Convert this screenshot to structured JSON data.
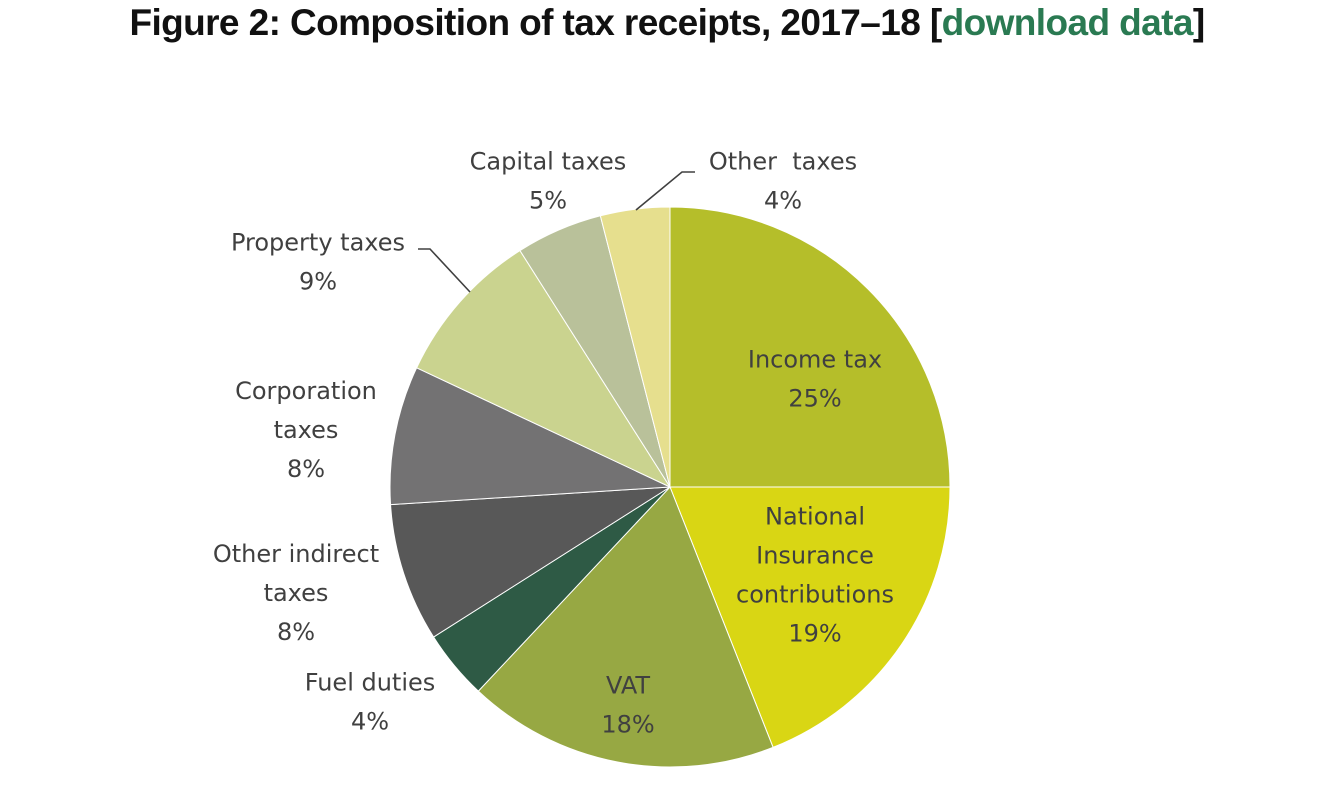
{
  "figure": {
    "title_prefix": "Figure 2: Composition of tax receipts, 2017–18 [",
    "link_text": "download data",
    "title_suffix": "]",
    "link_color": "#2a7a52"
  },
  "chart_data": {
    "type": "pie",
    "title": "Figure 2: Composition of tax receipts, 2017–18",
    "start": "12 o'clock",
    "direction": "clockwise",
    "slices": [
      {
        "label": "Income tax",
        "label_lines": [
          "Income tax"
        ],
        "value": 25,
        "value_text": "25%",
        "color": "#b5be2a"
      },
      {
        "label": "National Insurance contributions",
        "label_lines": [
          "National",
          "Insurance",
          "contributions"
        ],
        "value": 19,
        "value_text": "19%",
        "color": "#d9d614"
      },
      {
        "label": "VAT",
        "label_lines": [
          "VAT"
        ],
        "value": 18,
        "value_text": "18%",
        "color": "#97a843"
      },
      {
        "label": "Fuel duties",
        "label_lines": [
          "Fuel duties"
        ],
        "value": 4,
        "value_text": "4%",
        "color": "#2e5a45"
      },
      {
        "label": "Other indirect taxes",
        "label_lines": [
          "Other indirect",
          "taxes"
        ],
        "value": 8,
        "value_text": "8%",
        "color": "#585858"
      },
      {
        "label": "Corporation taxes",
        "label_lines": [
          "Corporation",
          "taxes"
        ],
        "value": 8,
        "value_text": "8%",
        "color": "#737273"
      },
      {
        "label": "Property taxes",
        "label_lines": [
          "Property taxes"
        ],
        "value": 9,
        "value_text": "9%",
        "color": "#cad38f"
      },
      {
        "label": "Capital taxes",
        "label_lines": [
          "Capital taxes"
        ],
        "value": 5,
        "value_text": "5%",
        "color": "#b9c19a"
      },
      {
        "label": "Other taxes",
        "label_lines": [
          "Other  taxes"
        ],
        "value": 4,
        "value_text": "4%",
        "color": "#e6df8e"
      }
    ]
  }
}
